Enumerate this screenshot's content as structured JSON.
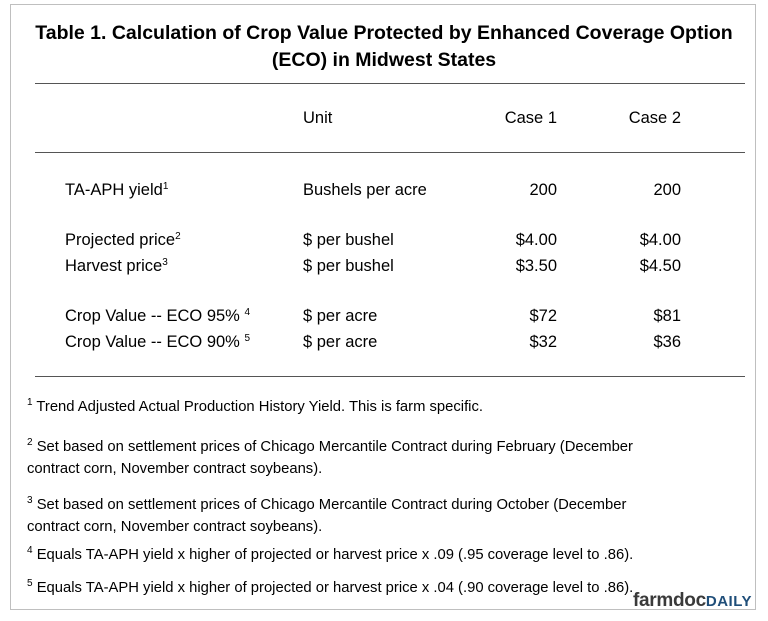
{
  "table": {
    "title_lines": [
      "Table 1.  Calculation of Crop Value Protected by Enhanced Coverage Option",
      "(ECO) in Midwest States"
    ],
    "header": [
      "Unit",
      "Case 1",
      "Case 2"
    ],
    "rows": [
      {
        "label": "TA-APH yield",
        "note": "1",
        "unit": "Bushels per acre",
        "case1": "200",
        "case2": "200"
      },
      {
        "label": "Projected price",
        "note": "2",
        "unit": "$ per bushel",
        "case1": "$4.00",
        "case2": "$4.00"
      },
      {
        "label": "Harvest price",
        "note": "3",
        "unit": "$ per bushel",
        "case1": "$3.50",
        "case2": "$4.50"
      },
      {
        "label": "Crop Value -- ECO 95% ",
        "note": "4",
        "unit": "$ per acre",
        "case1": "$72",
        "case2": "$81"
      },
      {
        "label": "Crop Value -- ECO 90% ",
        "note": "5",
        "unit": "$ per acre",
        "case1": "$32",
        "case2": "$36"
      }
    ],
    "footnotes": [
      {
        "mark": "1",
        "lines": [
          "Trend Adjusted Actual Production History Yield.  This is farm specific."
        ]
      },
      {
        "mark": "2",
        "lines": [
          "Set based on settlement prices of Chicago Mercantile Contract during February (December",
          "contract corn, November contract soybeans)."
        ]
      },
      {
        "mark": "3",
        "lines": [
          "Set based on settlement prices of Chicago Mercantile Contract during October (December",
          "contract corn, November contract soybeans)."
        ]
      },
      {
        "mark": "4",
        "lines": [
          "Equals TA-APH yield x higher of projected or harvest price x .09 (.95 coverage level to .86)."
        ]
      },
      {
        "mark": "5",
        "lines": [
          "Equals TA-APH yield x higher of projected or harvest price x .04 (.90 coverage level to .86)."
        ]
      }
    ]
  },
  "logo": {
    "main": "farmdoc",
    "sub": "DAILY"
  }
}
